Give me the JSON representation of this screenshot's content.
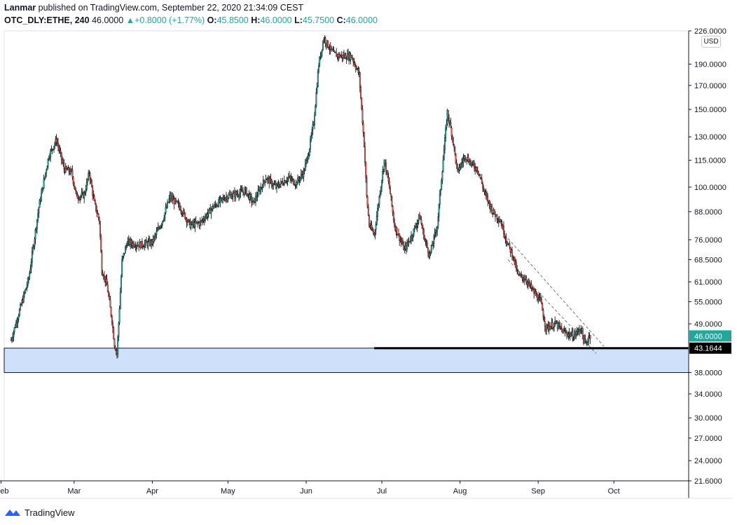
{
  "header": {
    "author": "Lanmar",
    "published": "published on TradingView.com, September 22, 2020 21:34:09 CEST",
    "symbol": "OTC_DLY:ETHE, 240",
    "last": "46.0000",
    "change": "+0.8000 (+1.77%)",
    "o_label": "O:",
    "o": "45.8500",
    "h_label": "H:",
    "h": "46.0000",
    "l_label": "L:",
    "l": "45.7500",
    "c_label": "C:",
    "c": "46.0000",
    "change_arrow": "triangle-up-icon"
  },
  "currency_button": "USD",
  "footer": {
    "brand": "TradingView",
    "logo": "tradingview-logo-icon"
  },
  "colors": {
    "up": "#26a69a",
    "down": "#ef5350",
    "zone_fill": "#cfe0fb",
    "axis": "#131722",
    "grid_text": "#131722"
  },
  "chart_data": {
    "type": "candlestick",
    "title": "OTC_DLY:ETHE, 240",
    "y_scale": "log",
    "ylim": [
      21.6,
      226
    ],
    "x_tick_labels": [
      "eb",
      "Mar",
      "Apr",
      "May",
      "Jun",
      "Jul",
      "Aug",
      "Sep",
      "Oct"
    ],
    "y_tick_labels": [
      "21.6000",
      "24.0000",
      "27.0000",
      "30.0000",
      "34.0000",
      "38.0000",
      "43.1644",
      "49.0000",
      "55.0000",
      "61.0000",
      "68.5000",
      "76.0000",
      "88.0000",
      "100.0000",
      "115.0000",
      "130.0000",
      "150.0000",
      "170.0000",
      "190.0000",
      "226.0000"
    ],
    "price_labels": [
      {
        "label": "46.0000",
        "value": 46.0,
        "color": "#26a69a"
      },
      {
        "label": "43.1644",
        "value": 43.1644,
        "color": "#000000"
      }
    ],
    "horizontal_lines": [
      {
        "value": 43.1644,
        "from_date": "2020-06-28",
        "color": "#000000"
      }
    ],
    "support_zone": {
      "top": 43.1644,
      "bottom": 38.0
    },
    "channel_lines": [
      {
        "start": [
          "2020-08-20",
          76.5
        ],
        "end": [
          "2020-09-27",
          43.6
        ]
      },
      {
        "start": [
          "2020-08-20",
          68.5
        ],
        "end": [
          "2020-09-24",
          42.0
        ]
      }
    ],
    "anchors": [
      [
        "2020-02-05",
        45
      ],
      [
        "2020-02-12",
        62
      ],
      [
        "2020-02-16",
        90
      ],
      [
        "2020-02-20",
        118
      ],
      [
        "2020-02-23",
        128
      ],
      [
        "2020-02-26",
        110
      ],
      [
        "2020-02-29",
        108
      ],
      [
        "2020-03-02",
        95
      ],
      [
        "2020-03-05",
        96
      ],
      [
        "2020-03-07",
        108
      ],
      [
        "2020-03-09",
        92
      ],
      [
        "2020-03-11",
        84
      ],
      [
        "2020-03-12",
        65
      ],
      [
        "2020-03-14",
        60
      ],
      [
        "2020-03-16",
        50
      ],
      [
        "2020-03-17",
        44
      ],
      [
        "2020-03-18",
        42
      ],
      [
        "2020-03-20",
        68
      ],
      [
        "2020-03-22",
        75
      ],
      [
        "2020-03-27",
        74
      ],
      [
        "2020-04-01",
        75
      ],
      [
        "2020-04-05",
        84
      ],
      [
        "2020-04-08",
        95
      ],
      [
        "2020-04-12",
        90
      ],
      [
        "2020-04-16",
        82
      ],
      [
        "2020-04-20",
        83
      ],
      [
        "2020-04-25",
        90
      ],
      [
        "2020-04-30",
        95
      ],
      [
        "2020-05-03",
        96
      ],
      [
        "2020-05-08",
        98
      ],
      [
        "2020-05-11",
        92
      ],
      [
        "2020-05-16",
        105
      ],
      [
        "2020-05-20",
        100
      ],
      [
        "2020-05-25",
        105
      ],
      [
        "2020-05-28",
        102
      ],
      [
        "2020-05-31",
        108
      ],
      [
        "2020-06-02",
        120
      ],
      [
        "2020-06-04",
        140
      ],
      [
        "2020-06-06",
        190
      ],
      [
        "2020-06-08",
        218
      ],
      [
        "2020-06-10",
        208
      ],
      [
        "2020-06-12",
        200
      ],
      [
        "2020-06-15",
        198
      ],
      [
        "2020-06-19",
        198
      ],
      [
        "2020-06-22",
        180
      ],
      [
        "2020-06-24",
        125
      ],
      [
        "2020-06-25",
        95
      ],
      [
        "2020-06-26",
        82
      ],
      [
        "2020-06-28",
        78
      ],
      [
        "2020-06-30",
        95
      ],
      [
        "2020-07-02",
        115
      ],
      [
        "2020-07-04",
        100
      ],
      [
        "2020-07-06",
        82
      ],
      [
        "2020-07-10",
        72
      ],
      [
        "2020-07-13",
        78
      ],
      [
        "2020-07-16",
        86
      ],
      [
        "2020-07-18",
        76
      ],
      [
        "2020-07-20",
        70
      ],
      [
        "2020-07-23",
        82
      ],
      [
        "2020-07-25",
        110
      ],
      [
        "2020-07-27",
        148
      ],
      [
        "2020-07-29",
        130
      ],
      [
        "2020-07-31",
        108
      ],
      [
        "2020-08-03",
        118
      ],
      [
        "2020-08-06",
        112
      ],
      [
        "2020-08-08",
        110
      ],
      [
        "2020-08-11",
        96
      ],
      [
        "2020-08-14",
        88
      ],
      [
        "2020-08-17",
        84
      ],
      [
        "2020-08-20",
        74
      ],
      [
        "2020-08-22",
        70
      ],
      [
        "2020-08-24",
        63
      ],
      [
        "2020-08-27",
        62
      ],
      [
        "2020-08-30",
        58
      ],
      [
        "2020-09-02",
        55
      ],
      [
        "2020-09-04",
        48
      ],
      [
        "2020-09-08",
        49
      ],
      [
        "2020-09-11",
        47
      ],
      [
        "2020-09-15",
        46
      ],
      [
        "2020-09-18",
        48
      ],
      [
        "2020-09-19",
        45
      ],
      [
        "2020-09-20",
        44
      ],
      [
        "2020-09-21",
        46
      ],
      [
        "2020-09-22",
        46
      ]
    ]
  }
}
